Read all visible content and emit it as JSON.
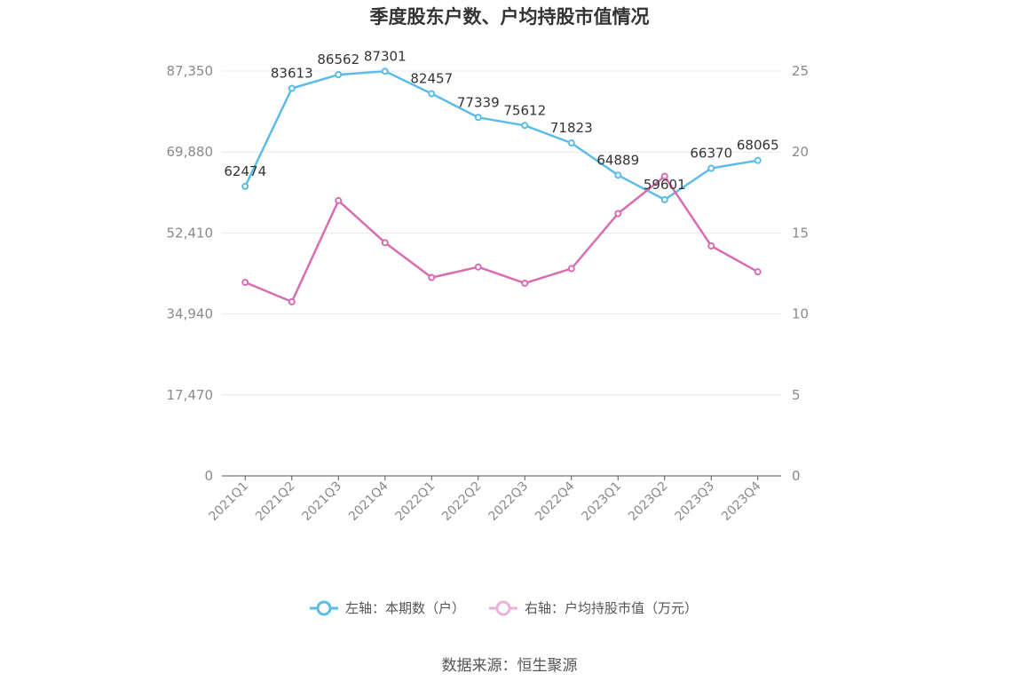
{
  "chart_data": {
    "type": "line",
    "title": "季度股东户数、户均持股市值情况",
    "categories": [
      "2021Q1",
      "2021Q2",
      "2021Q3",
      "2021Q4",
      "2022Q1",
      "2022Q2",
      "2022Q3",
      "2022Q4",
      "2023Q1",
      "2023Q2",
      "2023Q3",
      "2023Q4"
    ],
    "left_axis": {
      "ticks": [
        "0",
        "17,470",
        "34,940",
        "52,410",
        "69,880",
        "87,350"
      ],
      "ylim": [
        0,
        87350
      ]
    },
    "right_axis": {
      "ticks": [
        "0",
        "5",
        "10",
        "15",
        "20",
        "25"
      ],
      "ylim": [
        0,
        25
      ]
    },
    "series": [
      {
        "name": "左轴：本期数（户）",
        "axis": "left",
        "color": "#5bbcea",
        "values": [
          62474,
          83613,
          86562,
          87301,
          82457,
          77339,
          75612,
          71823,
          64889,
          59601,
          66370,
          68065
        ],
        "labels": [
          "62474",
          "83613",
          "86562",
          "87301",
          "82457",
          "77339",
          "75612",
          "71823",
          "64889",
          "59601",
          "66370",
          "68065"
        ]
      },
      {
        "name": "右轴：户均持股市值（万元）",
        "axis": "right",
        "color": "#d86db0",
        "values": [
          11.95,
          10.75,
          17.0,
          14.4,
          12.25,
          12.9,
          11.9,
          12.8,
          16.2,
          18.5,
          14.2,
          12.6
        ]
      }
    ],
    "grid": true,
    "legend_position": "bottom"
  },
  "source": "数据来源：恒生聚源"
}
